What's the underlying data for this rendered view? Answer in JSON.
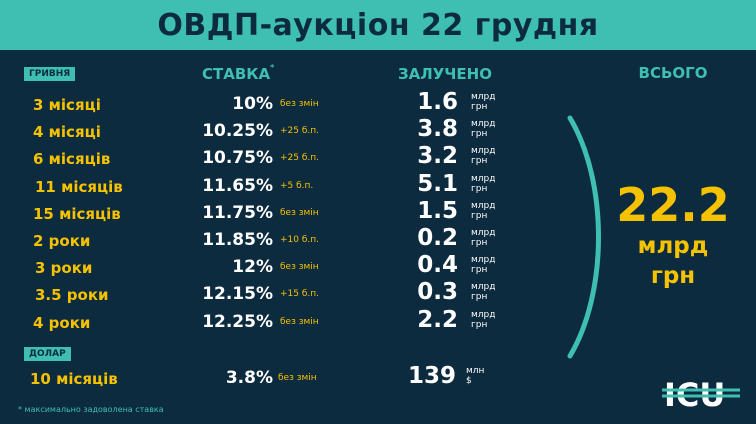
{
  "title": "ОВДП-аукціон 22 грудня",
  "sections": {
    "uah": "ГРИВНЯ",
    "usd": "ДОЛАР"
  },
  "columns": {
    "rate": "СТАВКА",
    "rate_mark": "*",
    "raised": "ЗАЛУЧЕНО",
    "total": "ВСЬОГО"
  },
  "rows": [
    {
      "term": "3 місяці",
      "rate": "10%",
      "change": "без змін",
      "amount": "1.6",
      "unit1": "млрд",
      "unit2": "грн"
    },
    {
      "term": "4 місяці",
      "rate": "10.25%",
      "change": "+25 б.п.",
      "amount": "3.8",
      "unit1": "млрд",
      "unit2": "грн"
    },
    {
      "term": "6 місяців",
      "rate": "10.75%",
      "change": "+25 б.п.",
      "amount": "3.2",
      "unit1": "млрд",
      "unit2": "грн"
    },
    {
      "term": "11 місяців",
      "rate": "11.65%",
      "change": "+5 б.п.",
      "amount": "5.1",
      "unit1": "млрд",
      "unit2": "грн"
    },
    {
      "term": "15 місяців",
      "rate": "11.75%",
      "change": "без змін",
      "amount": "1.5",
      "unit1": "млрд",
      "unit2": "грн"
    },
    {
      "term": "2 роки",
      "rate": "11.85%",
      "change": "+10 б.п.",
      "amount": "0.2",
      "unit1": "млрд",
      "unit2": "грн"
    },
    {
      "term": "3 роки",
      "rate": "12%",
      "change": "без змін",
      "amount": "0.4",
      "unit1": "млрд",
      "unit2": "грн"
    },
    {
      "term": "3.5 роки",
      "rate": "12.15%",
      "change": "+15 б.п.",
      "amount": "0.3",
      "unit1": "млрд",
      "unit2": "грн"
    },
    {
      "term": "4 роки",
      "rate": "12.25%",
      "change": "без змін",
      "amount": "2.2",
      "unit1": "млрд",
      "unit2": "грн"
    }
  ],
  "usd_row": {
    "term": "10 місяців",
    "rate": "3.8%",
    "change": "без змін",
    "amount": "139",
    "unit1": "млн",
    "unit2": "$"
  },
  "total": {
    "value": "22.2",
    "unit1": "млрд",
    "unit2": "грн"
  },
  "footnote": "максимально задоволена ставка",
  "footnote_mark": "*",
  "logo_text": "ICU",
  "colors": {
    "background": "#0d2b3e",
    "accent": "#3fbfb2",
    "highlight": "#f5c200",
    "text": "#ffffff"
  }
}
